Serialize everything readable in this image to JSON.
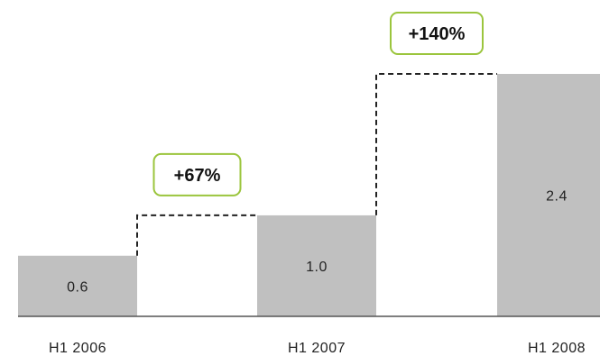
{
  "chart_data": {
    "type": "bar",
    "categories": [
      "H1 2006",
      "H1 2007",
      "H1 2008"
    ],
    "values": [
      0.6,
      1.0,
      2.4
    ],
    "value_labels": [
      "0.6",
      "1.0",
      "2.4"
    ],
    "growth_annotations": [
      {
        "from": "H1 2006",
        "to": "H1 2007",
        "label": "+67%"
      },
      {
        "from": "H1 2007",
        "to": "H1 2008",
        "label": "+140%"
      }
    ],
    "title": "",
    "xlabel": "",
    "ylabel": "",
    "ylim": [
      0,
      2.4
    ],
    "grid": false,
    "legend": "none",
    "colors": {
      "bar": "#c0c0c0",
      "annotation_border": "#9bc53d"
    }
  }
}
